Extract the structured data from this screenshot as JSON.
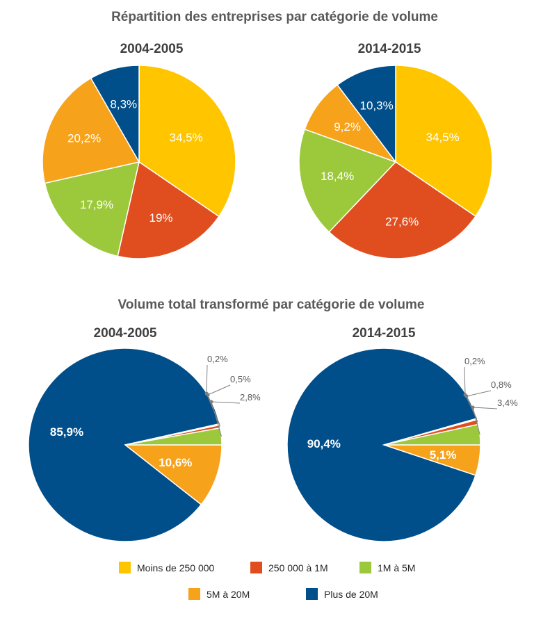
{
  "titles": {
    "top": "Répartition des entreprises par catégorie de volume",
    "bottom": "Volume total transformé par catégorie de volume"
  },
  "colors": {
    "Moins de 250 000": "#FFC600",
    "250 000 à 1M": "#E04E1F",
    "1M à 5M": "#9CC93B",
    "5M à 20M": "#F7A21B",
    "Plus de 20M": "#004E8A"
  },
  "legend": [
    "Moins de 250 000",
    "250 000 à 1M",
    "1M à 5M",
    "5M à 20M",
    "Plus de 20M"
  ],
  "chart_data": [
    {
      "type": "pie",
      "group": "Répartition des entreprises par catégorie de volume",
      "title": "2004-2005",
      "categories": [
        "Moins de 250 000",
        "250 000 à 1M",
        "1M à 5M",
        "5M à 20M",
        "Plus de 20M"
      ],
      "values": [
        34.5,
        19,
        17.9,
        20.2,
        8.3
      ],
      "labels": [
        "34,5%",
        "19%",
        "17,9%",
        "20,2%",
        "8,3%"
      ]
    },
    {
      "type": "pie",
      "group": "Répartition des entreprises par catégorie de volume",
      "title": "2014-2015",
      "categories": [
        "Moins de 250 000",
        "250 000 à 1M",
        "1M à 5M",
        "5M à 20M",
        "Plus de 20M"
      ],
      "values": [
        34.5,
        27.6,
        18.4,
        9.2,
        10.3
      ],
      "labels": [
        "34,5%",
        "27,6%",
        "18,4%",
        "9,2%",
        "10,3%"
      ]
    },
    {
      "type": "pie",
      "group": "Volume total transformé par catégorie de volume",
      "title": "2004-2005",
      "categories": [
        "5M à 20M",
        "Plus de 20M",
        "Moins de 250 000",
        "250 000 à 1M",
        "1M à 5M"
      ],
      "values": [
        10.6,
        85.9,
        0.2,
        0.5,
        2.8
      ],
      "labels": [
        "10,6%",
        "85,9%",
        "0,2%",
        "0,5%",
        "2,8%"
      ]
    },
    {
      "type": "pie",
      "group": "Volume total transformé par catégorie de volume",
      "title": "2014-2015",
      "categories": [
        "5M à 20M",
        "Plus de 20M",
        "Moins de 250 000",
        "250 000 à 1M",
        "1M à 5M"
      ],
      "values": [
        5.1,
        90.4,
        0.2,
        0.8,
        3.4
      ],
      "labels": [
        "5,1%",
        "90,4%",
        "0,2%",
        "0,8%",
        "3,4%"
      ]
    }
  ]
}
